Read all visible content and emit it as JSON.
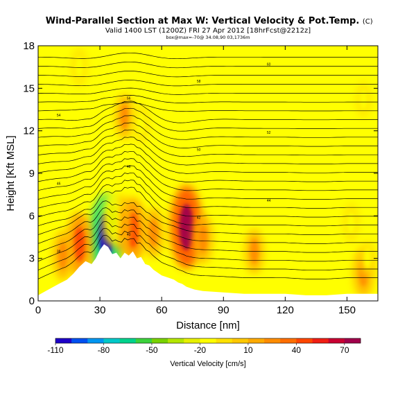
{
  "chart_data": {
    "type": "heatmap",
    "title": "Wind-Parallel Section at Max W: Vertical Velocity & Pot.Temp.",
    "title_mark": "(C)",
    "subtitle": "Valid 1400 LST (1200Z) FRI 27 Apr 2012 [18hrFcst@2212z]",
    "subtitle2": "box@max=-70@ 34.08,90 03,1736m",
    "xlabel": "Distance [nm]",
    "ylabel": "Height [Kft MSL]",
    "xlim": [
      0,
      165
    ],
    "ylim": [
      0,
      18
    ],
    "x_ticks": [
      0,
      30,
      60,
      90,
      120,
      150
    ],
    "y_ticks": [
      0,
      3,
      6,
      9,
      12,
      15,
      18
    ],
    "colorbar": {
      "label": "Vertical Velocity [cm/s]",
      "ticks": [
        -110,
        -80,
        -50,
        -20,
        10,
        40,
        70
      ],
      "range": [
        -110,
        80
      ],
      "colors": [
        "#1e00c8",
        "#0050f0",
        "#0096f0",
        "#00c8c8",
        "#00d28c",
        "#3cd23c",
        "#78d200",
        "#b4e600",
        "#e6f000",
        "#ffff00",
        "#ffe100",
        "#ffc800",
        "#ffaa00",
        "#ff8c00",
        "#ff6e00",
        "#ff4600",
        "#f01e14",
        "#c80032",
        "#a0004b"
      ]
    },
    "terrain": [
      [
        0,
        0.4
      ],
      [
        5,
        0.8
      ],
      [
        10,
        1.2
      ],
      [
        14,
        1.5
      ],
      [
        17,
        1.9
      ],
      [
        20,
        2.4
      ],
      [
        23,
        2.8
      ],
      [
        26,
        2.6
      ],
      [
        28,
        3.0
      ],
      [
        30,
        3.6
      ],
      [
        32,
        4.0
      ],
      [
        34,
        3.8
      ],
      [
        36,
        3.3
      ],
      [
        38,
        3.4
      ],
      [
        40,
        3.0
      ],
      [
        42,
        3.4
      ],
      [
        44,
        3.2
      ],
      [
        46,
        3.5
      ],
      [
        48,
        3.0
      ],
      [
        50,
        3.1
      ],
      [
        52,
        2.6
      ],
      [
        54,
        2.5
      ],
      [
        56,
        2.2
      ],
      [
        58,
        2.0
      ],
      [
        60,
        1.8
      ],
      [
        62,
        1.7
      ],
      [
        64,
        1.6
      ],
      [
        66,
        1.5
      ],
      [
        68,
        1.3
      ],
      [
        70,
        1.2
      ],
      [
        72,
        1.0
      ],
      [
        74,
        0.9
      ],
      [
        76,
        0.8
      ],
      [
        80,
        0.7
      ],
      [
        90,
        0.6
      ],
      [
        100,
        0.5
      ],
      [
        110,
        0.5
      ],
      [
        120,
        0.5
      ],
      [
        130,
        0.4
      ],
      [
        140,
        0.4
      ],
      [
        150,
        0.5
      ],
      [
        160,
        0.5
      ],
      [
        165,
        0.5
      ]
    ],
    "potential_temperature_labels": [
      "38",
      "40",
      "42",
      "44",
      "46",
      "48",
      "50",
      "52",
      "54",
      "56",
      "58",
      "60"
    ],
    "vertical_velocity_features": [
      {
        "x": 72,
        "y": 5.2,
        "value": 70
      },
      {
        "x": 33,
        "y": 4.6,
        "value": -110
      },
      {
        "x": 46,
        "y": 5.0,
        "value": 40
      },
      {
        "x": 20,
        "y": 4.0,
        "value": 40
      },
      {
        "x": 12,
        "y": 3.2,
        "value": 25
      },
      {
        "x": 56,
        "y": 4.8,
        "value": 25
      },
      {
        "x": 80,
        "y": 4.4,
        "value": 25
      },
      {
        "x": 105,
        "y": 3.5,
        "value": 20
      },
      {
        "x": 158,
        "y": 2.0,
        "value": 25
      },
      {
        "x": 40,
        "y": 5.5,
        "value": 30
      },
      {
        "x": 36,
        "y": 5.8,
        "value": -30
      },
      {
        "x": 31,
        "y": 16.0,
        "value": -20
      },
      {
        "x": 42,
        "y": 13.0,
        "value": 20
      },
      {
        "x": 50,
        "y": 12.5,
        "value": -15
      },
      {
        "x": 20,
        "y": 16.5,
        "value": -15
      },
      {
        "x": 158,
        "y": 14.2,
        "value": -12
      },
      {
        "x": 152,
        "y": 5.5,
        "value": -15
      },
      {
        "x": 160,
        "y": 3.0,
        "value": -12
      }
    ]
  }
}
